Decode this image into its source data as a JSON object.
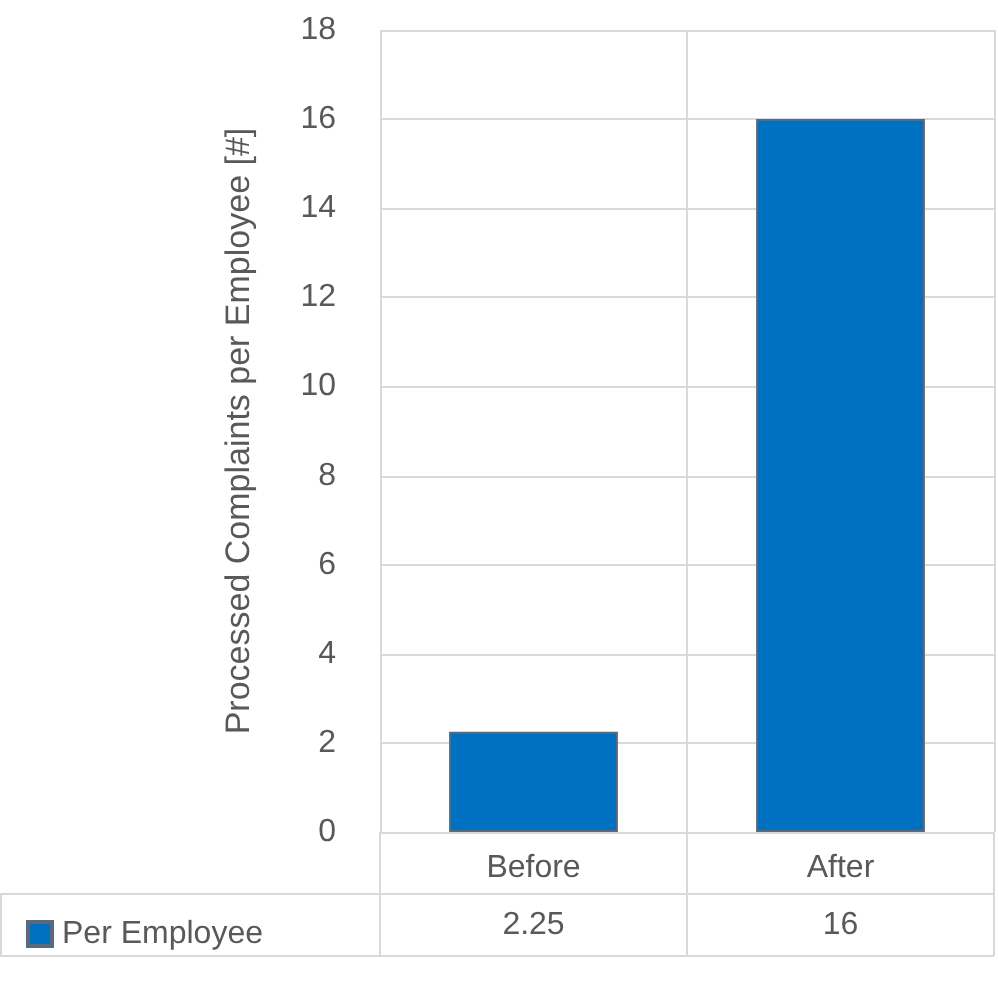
{
  "chart_data": {
    "type": "bar",
    "ylabel": "Processed Complaints per Employee [#]",
    "categories": [
      "Before",
      "After"
    ],
    "series": [
      {
        "name": "Per Employee",
        "color": "#0070c0",
        "values": [
          2.25,
          16
        ]
      }
    ],
    "ylim": [
      0,
      18
    ],
    "yticks": [
      0,
      2,
      4,
      6,
      8,
      10,
      12,
      14,
      16,
      18
    ],
    "grid": "y",
    "legend": "bottom left",
    "data_labels": true
  }
}
